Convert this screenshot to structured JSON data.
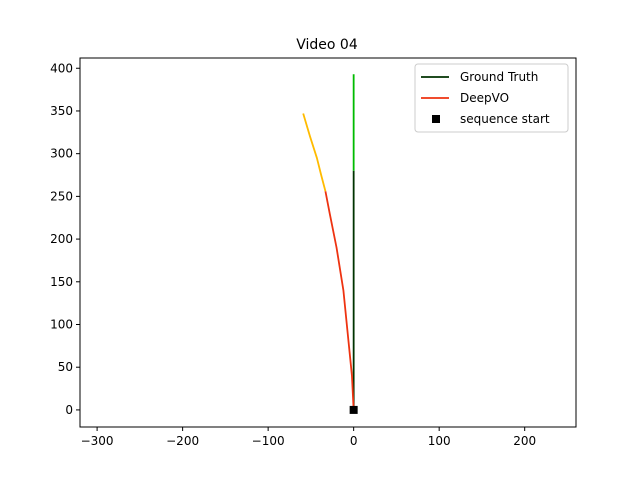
{
  "chart_data": {
    "type": "line",
    "title": "Video 04",
    "xlabel": "",
    "ylabel": "",
    "xlim": [
      -320,
      260
    ],
    "ylim": [
      -20,
      412
    ],
    "xticks": [
      -300,
      -200,
      -100,
      0,
      100,
      200
    ],
    "yticks": [
      0,
      50,
      100,
      150,
      200,
      250,
      300,
      350,
      400
    ],
    "xtick_labels": [
      "−300",
      "−200",
      "−100",
      "0",
      "100",
      "200"
    ],
    "ytick_labels": [
      "0",
      "50",
      "100",
      "150",
      "200",
      "250",
      "300",
      "350",
      "400"
    ],
    "grid": false,
    "legend_position": "top-right",
    "series": [
      {
        "name": "Ground Truth",
        "legend_color": "#003300",
        "segments": [
          {
            "color": "#003300",
            "points": [
              [
                0,
                0
              ],
              [
                0,
                280
              ]
            ]
          },
          {
            "color": "#00bb00",
            "points": [
              [
                0,
                280
              ],
              [
                0,
                393
              ]
            ]
          }
        ]
      },
      {
        "name": "DeepVO",
        "legend_color": "#ee3311",
        "segments": [
          {
            "color": "#ee3311",
            "points": [
              [
                0,
                0
              ],
              [
                -2,
                40
              ],
              [
                -6,
                80
              ],
              [
                -12,
                140
              ],
              [
                -20,
                190
              ],
              [
                -28,
                230
              ],
              [
                -33,
                256
              ]
            ]
          },
          {
            "color": "#ffbb00",
            "points": [
              [
                -33,
                256
              ],
              [
                -38,
                275
              ],
              [
                -43,
                295
              ],
              [
                -51,
                320
              ],
              [
                -59,
                347
              ]
            ]
          }
        ]
      },
      {
        "name": "sequence start",
        "type": "scatter",
        "marker": "square",
        "color": "#000000",
        "points": [
          [
            0,
            0
          ]
        ]
      }
    ]
  }
}
